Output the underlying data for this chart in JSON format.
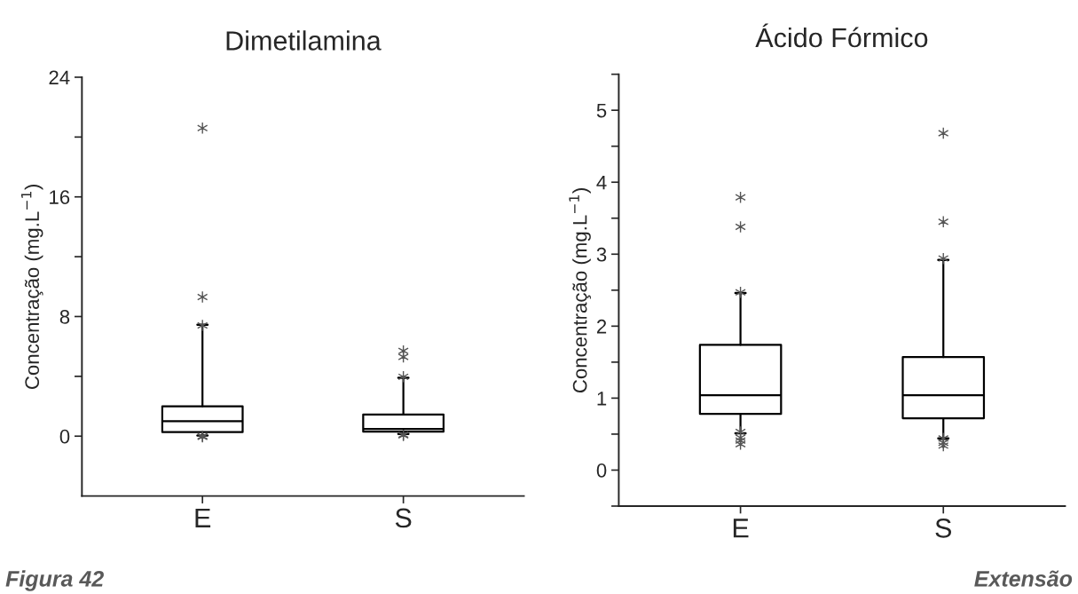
{
  "chart_data": [
    {
      "type": "box",
      "title": "Dimetilamina",
      "ylabel": "Concentração (mg.L$^{−1}$)",
      "categories": [
        "E",
        "S"
      ],
      "boxes": [
        {
          "low": 0.05,
          "q1": 0.27,
          "median": 1.0,
          "q3": 2.0,
          "high": 7.45,
          "outliers": [
            20.6,
            9.3,
            7.4,
            0.0,
            -0.05
          ]
        },
        {
          "low": 0.15,
          "q1": 0.3,
          "median": 0.48,
          "q3": 1.45,
          "high": 3.9,
          "outliers": [
            5.7,
            5.3,
            3.97,
            0.05,
            0.1
          ]
        }
      ],
      "ylim": [
        -4,
        24
      ],
      "yticks": [
        0,
        {
          "value": 4,
          "label": null
        },
        8,
        {
          "value": 12,
          "label": null
        },
        16,
        {
          "value": 20,
          "label": null
        },
        24
      ],
      "annotations": [
        "Figura 42"
      ]
    },
    {
      "type": "box",
      "title": "Ácido Fórmico",
      "ylabel": "Concentração (mg.L$^{−1}$)",
      "categories": [
        "E",
        "S"
      ],
      "boxes": [
        {
          "low": 0.51,
          "q1": 0.78,
          "median": 1.04,
          "q3": 1.74,
          "high": 2.46,
          "outliers": [
            3.79,
            3.38,
            2.47,
            0.53,
            0.45,
            0.41,
            0.36
          ]
        },
        {
          "low": 0.44,
          "q1": 0.72,
          "median": 1.04,
          "q3": 1.57,
          "high": 2.92,
          "outliers": [
            4.68,
            3.45,
            2.94,
            0.44,
            0.38,
            0.34
          ]
        }
      ],
      "ylim": [
        -0.5,
        5.5
      ],
      "yticks": [
        {
          "value": -0.5,
          "label": null
        },
        0,
        {
          "value": 0.5,
          "label": null
        },
        1,
        {
          "value": 1.5,
          "label": null
        },
        2,
        {
          "value": 2.5,
          "label": null
        },
        3,
        {
          "value": 3.5,
          "label": null
        },
        4,
        {
          "value": 4.5,
          "label": null
        },
        5,
        {
          "value": 5.5,
          "label": null
        }
      ],
      "annotations": [
        "Extensão"
      ]
    }
  ]
}
